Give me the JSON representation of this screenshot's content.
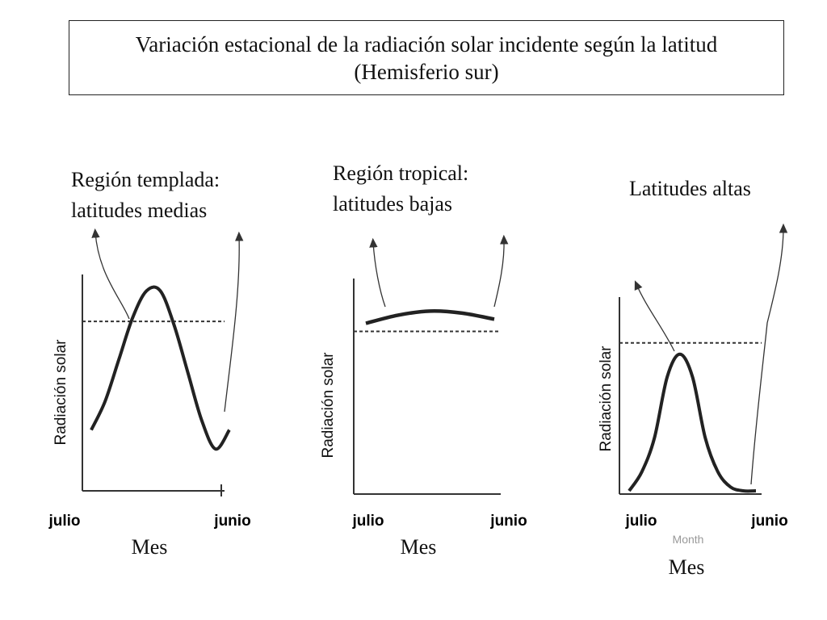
{
  "title": "Variación estacional de la radiación solar incidente según la latitud (Hemisferio sur)",
  "colors": {
    "ink": "#222222",
    "axis": "#333333"
  },
  "chart_data": [
    {
      "type": "line",
      "title": "Región templada:\nlatitudes medias",
      "xlabel": "Mes",
      "ylabel": "Radiación solar",
      "x_tick_labels": [
        "julio",
        "junio"
      ],
      "xlim": [
        0,
        1
      ],
      "ylim": [
        0,
        1
      ],
      "reference_line": 0.72,
      "series": [
        {
          "x": [
            0,
            0.1,
            0.2,
            0.3,
            0.4,
            0.5,
            0.6,
            0.7,
            0.8,
            0.9,
            1.0
          ],
          "y": [
            0.15,
            0.3,
            0.52,
            0.74,
            0.88,
            0.88,
            0.7,
            0.45,
            0.2,
            0.05,
            0.15
          ]
        }
      ]
    },
    {
      "type": "line",
      "title": "Región tropical:\nlatitudes bajas",
      "xlabel": "Mes",
      "ylabel": "Radiación solar",
      "x_tick_labels": [
        "julio",
        "junio"
      ],
      "xlim": [
        0,
        1
      ],
      "ylim": [
        0,
        1
      ],
      "reference_line": 0.72,
      "series": [
        {
          "x": [
            0,
            0.25,
            0.5,
            0.75,
            1.0
          ],
          "y": [
            0.76,
            0.8,
            0.82,
            0.81,
            0.78
          ]
        }
      ]
    },
    {
      "type": "line",
      "title": "Latitudes altas",
      "xlabel": "Mes",
      "ghost_label": "Month",
      "ylabel": "Radiación solar",
      "x_tick_labels": [
        "julio",
        "junio"
      ],
      "xlim": [
        0,
        1
      ],
      "ylim": [
        0,
        1
      ],
      "reference_line": 0.78,
      "series": [
        {
          "x": [
            0,
            0.1,
            0.2,
            0.3,
            0.4,
            0.5,
            0.6,
            0.7,
            0.8,
            0.9,
            1.0
          ],
          "y": [
            0.0,
            0.1,
            0.28,
            0.6,
            0.72,
            0.6,
            0.28,
            0.1,
            0.02,
            0.0,
            0.0
          ]
        }
      ]
    }
  ]
}
